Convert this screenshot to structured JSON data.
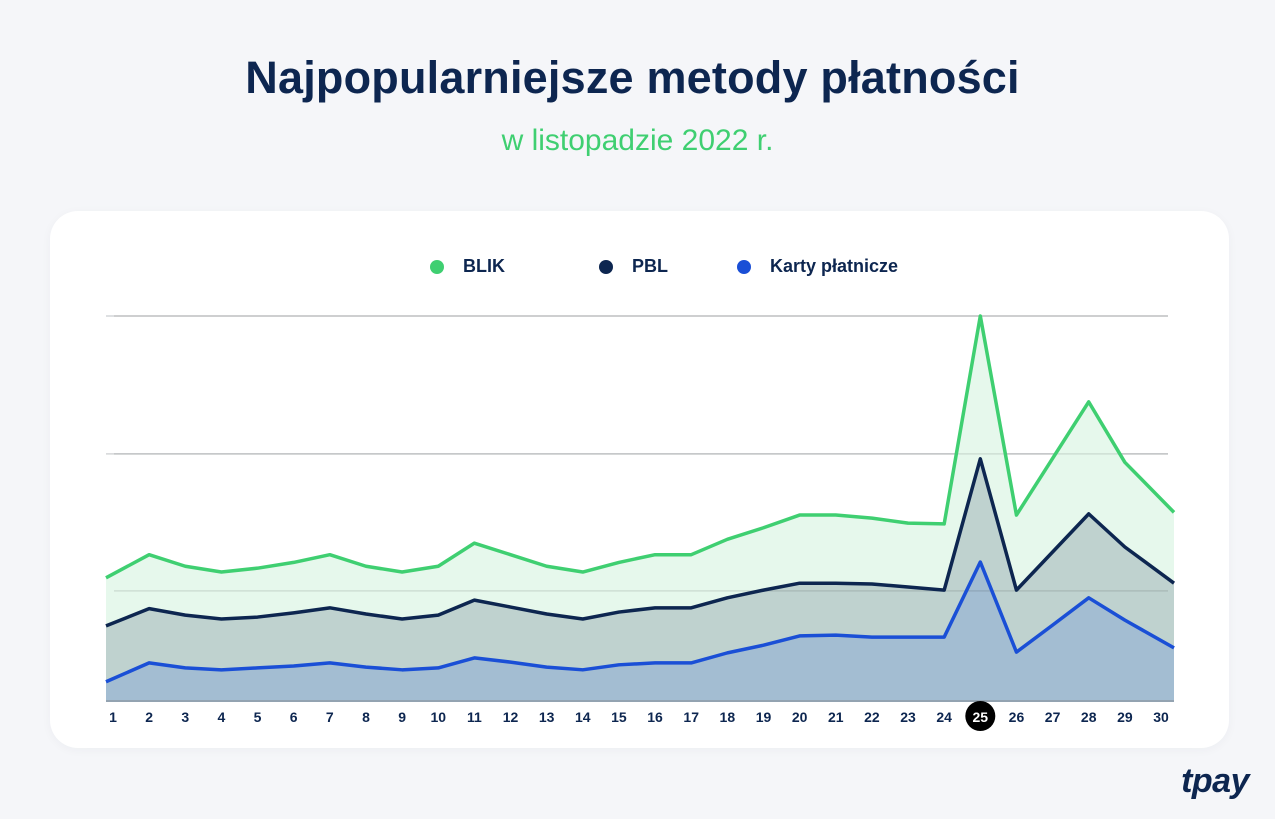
{
  "header": {
    "title": "Najpopularniejsze metody płatności",
    "subtitle": "w listopadzie 2022 r."
  },
  "logo": "tpay",
  "chart_data": {
    "type": "area",
    "title": "Najpopularniejsze metody płatności",
    "subtitle": "w listopadzie 2022 r.",
    "xlabel": "",
    "ylabel": "",
    "categories": [
      "1",
      "2",
      "3",
      "4",
      "5",
      "6",
      "7",
      "8",
      "9",
      "10",
      "11",
      "12",
      "13",
      "14",
      "15",
      "16",
      "17",
      "18",
      "19",
      "20",
      "21",
      "22",
      "23",
      "24",
      "25",
      "26",
      "27",
      "28",
      "29",
      "30"
    ],
    "highlighted_category": "25",
    "ylim": [
      0,
      100
    ],
    "y_tick_labels": "none",
    "gridlines": [
      28.6,
      64.2,
      100
    ],
    "grid": true,
    "legend_position": "top",
    "series": [
      {
        "name": "BLIK",
        "color": "#3fcf71",
        "fill": "#e6f8ec",
        "values": [
          32,
          38,
          35,
          33.5,
          34.5,
          36,
          38,
          35,
          33.5,
          35,
          41,
          38,
          35,
          33.5,
          36,
          38,
          38,
          42,
          45,
          48.3,
          48.3,
          47.5,
          46.2,
          46,
          100,
          48.3,
          63,
          77.7,
          62,
          49
        ]
      },
      {
        "name": "PBL",
        "color": "#0d2650",
        "fill": "#bfd2cf",
        "values": [
          19.5,
          24,
          22.3,
          21.3,
          21.8,
          22.9,
          24.2,
          22.6,
          21.3,
          22.3,
          26.2,
          24.4,
          22.6,
          21.3,
          23.1,
          24.2,
          24.2,
          26.8,
          28.8,
          30.6,
          30.6,
          30.4,
          29.6,
          28.8,
          62.9,
          28.8,
          38.7,
          48.6,
          40,
          30.6
        ]
      },
      {
        "name": "Karty płatnicze",
        "color": "#1a4fd6",
        "fill": "#a3bdd2",
        "values": [
          5,
          9.9,
          8.6,
          8.1,
          8.6,
          9.1,
          9.9,
          8.8,
          8.1,
          8.6,
          11.2,
          10.1,
          8.8,
          8.1,
          9.4,
          9.9,
          9.9,
          12.5,
          14.5,
          16.9,
          17.1,
          16.6,
          16.6,
          16.6,
          36.1,
          12.7,
          19.7,
          26.8,
          21,
          13.8
        ]
      }
    ]
  }
}
